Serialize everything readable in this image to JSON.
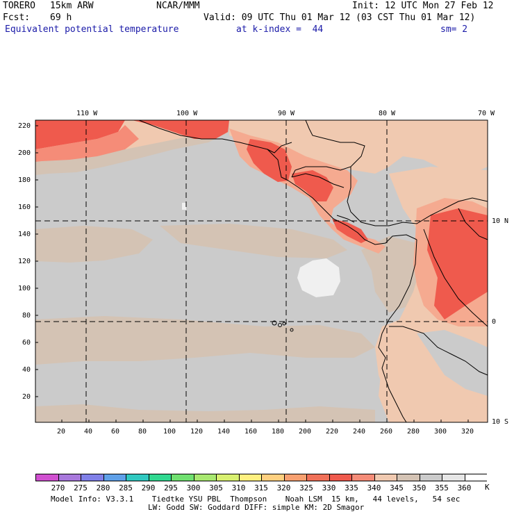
{
  "header": {
    "model": "TORERO",
    "resolution": "15km ARW",
    "org": "NCAR/MMM",
    "init": "Init: 12 UTC Mon 27 Feb 12",
    "fcst_label": "Fcst:",
    "fcst_value": "69 h",
    "valid": "Valid: 09 UTC Thu 01 Mar 12 (03 CST Thu 01 Mar 12)",
    "field": "Equivalent potential temperature",
    "level": "at k-index =  44",
    "smooth": "sm= 2"
  },
  "map": {
    "lon_labels": [
      "110 W",
      "100 W",
      "90 W",
      "80 W",
      "70 W"
    ],
    "lat_labels": [
      "10 N",
      "0",
      "10 S"
    ],
    "y_ticks": [
      "220",
      "200",
      "180",
      "160",
      "140",
      "120",
      "100",
      "80",
      "60",
      "40",
      "20"
    ],
    "x_ticks": [
      "20",
      "40",
      "60",
      "80",
      "100",
      "120",
      "140",
      "160",
      "180",
      "200",
      "220",
      "240",
      "260",
      "280",
      "300",
      "320"
    ],
    "colors": {
      "gray": "#cbcbcb",
      "tan": "#d4c3b4",
      "peach": "#f0c9b0",
      "salmon": "#f5aa90",
      "lightred": "#f58c78",
      "red": "#ef5a4d",
      "white": "#f0f0f0"
    }
  },
  "colorbar": {
    "labels": [
      "270",
      "275",
      "280",
      "285",
      "290",
      "295",
      "300",
      "305",
      "310",
      "315",
      "320",
      "325",
      "330",
      "335",
      "340",
      "345",
      "350",
      "355",
      "360"
    ],
    "unit": "K",
    "colors": [
      "#d050d0",
      "#a878dc",
      "#8080e8",
      "#5fa0e8",
      "#30c8c0",
      "#30d890",
      "#70e070",
      "#a8e870",
      "#d8f070",
      "#fff080",
      "#ffd080",
      "#f8a070",
      "#f07058",
      "#ef5a4d",
      "#f58c78",
      "#f0c9b0",
      "#d4c3b4",
      "#cbcbcb",
      "#e6e6e6",
      "#ffffff"
    ]
  },
  "footer": {
    "line1": "Model Info: V3.3.1    Tiedtke YSU PBL  Thompson    Noah LSM  15 km,   44 levels,   54 sec",
    "line2": "LW: Godd SW: Goddard DIFF: simple KM: 2D Smagor"
  }
}
